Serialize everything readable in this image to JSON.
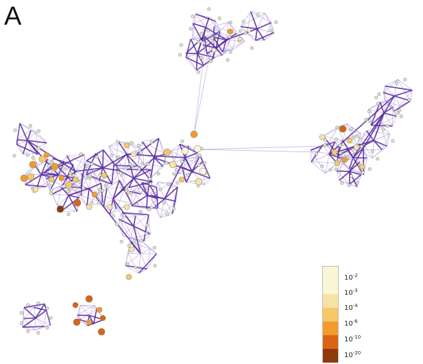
{
  "panel_label": "A",
  "colors": {
    "edge_strong": "#5b2a9e",
    "edge_light": "#a58fd4",
    "node_border": "#8a8a8a",
    "node_small": "#d8eac8"
  },
  "legend": {
    "items": [
      {
        "base": "10",
        "exp": "-2",
        "color": "#fbf6d4"
      },
      {
        "base": "10",
        "exp": "-3",
        "color": "#f8e3a6"
      },
      {
        "base": "10",
        "exp": "-4",
        "color": "#f6c868"
      },
      {
        "base": "10",
        "exp": "-6",
        "color": "#f29b2e"
      },
      {
        "base": "10",
        "exp": "-10",
        "color": "#d96412"
      },
      {
        "base": "10",
        "exp": "-20",
        "color": "#8c3a0c"
      }
    ]
  }
}
